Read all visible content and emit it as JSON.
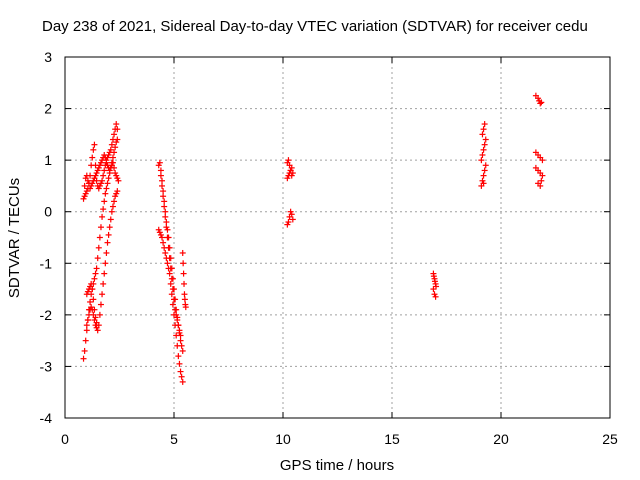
{
  "chart_data": {
    "type": "scatter",
    "title": "Day 238 of 2021, Sidereal Day-to-day VTEC variation (SDTVAR) for receiver cedu",
    "xlabel": "GPS time / hours",
    "ylabel": "SDTVAR / TECUs",
    "xlim": [
      0,
      25
    ],
    "ylim": [
      -4,
      3
    ],
    "x_ticks": [
      "0",
      "5",
      "10",
      "15",
      "20",
      "25"
    ],
    "y_ticks": [
      "-4",
      "-3",
      "-2",
      "-1",
      "0",
      "1",
      "2",
      "3"
    ],
    "grid": true,
    "marker": "+",
    "color": "#ff0000",
    "series": [
      {
        "x": [
          0.85,
          0.9,
          0.95,
          1.0,
          1.05,
          1.1,
          1.15,
          1.2,
          1.25,
          1.3,
          1.35,
          1.4,
          1.45,
          1.5,
          1.55,
          1.6,
          1.65,
          1.7,
          1.75,
          1.8,
          1.85,
          1.9,
          1.95,
          2.0,
          2.05,
          2.1,
          2.15,
          2.2,
          2.25,
          2.3,
          2.35,
          2.4,
          2.45,
          0.9,
          0.95,
          1.0,
          1.05,
          1.1,
          1.15,
          1.2,
          1.25,
          1.3,
          1.35,
          1.4,
          1.45,
          1.5,
          1.55,
          1.6,
          1.65,
          1.7,
          1.75,
          1.8,
          1.85,
          1.9,
          1.95,
          2.0,
          2.05,
          2.1,
          2.15,
          2.2,
          2.25,
          2.3,
          2.35,
          2.4,
          0.85,
          0.9,
          0.95,
          1.0,
          1.05,
          1.1,
          1.15,
          1.2,
          1.25,
          1.3,
          1.35,
          1.4,
          1.45,
          1.5,
          1.55,
          1.6,
          1.65,
          1.7,
          1.75,
          1.8,
          1.85,
          1.9,
          1.95,
          2.0,
          2.05,
          2.1,
          2.15,
          2.2,
          2.25,
          2.3,
          2.35,
          2.4,
          1.0,
          1.05,
          1.1,
          1.15,
          1.2,
          1.25,
          1.3,
          1.35,
          1.4,
          1.45,
          1.5,
          1.55,
          1.6,
          1.65,
          1.7,
          1.75,
          1.8,
          1.85,
          1.9,
          1.95,
          2.0,
          2.05,
          2.1,
          2.15,
          2.2,
          2.25,
          2.3,
          2.35,
          2.4,
          1.0,
          1.05,
          1.1,
          1.15,
          1.2,
          1.25,
          1.3,
          1.35,
          1.4,
          1.45,
          4.3,
          4.35,
          4.4,
          4.45,
          4.5,
          4.55,
          4.6,
          4.65,
          4.7,
          4.75,
          4.8,
          4.85,
          4.9,
          4.95,
          5.0,
          5.05,
          5.1,
          5.15,
          5.2,
          5.25,
          5.3,
          5.35,
          5.4,
          4.3,
          4.35,
          4.4,
          4.45,
          4.5,
          4.55,
          4.6,
          4.65,
          4.7,
          4.75,
          4.8,
          4.85,
          4.9,
          4.95,
          5.0,
          5.05,
          5.1,
          5.15,
          5.2,
          5.25,
          5.3,
          5.35,
          5.4,
          4.4,
          4.45,
          4.5,
          4.55,
          4.6,
          4.65,
          4.7,
          4.75,
          4.8,
          4.85,
          4.9,
          4.95,
          5.0,
          5.05,
          5.1,
          5.15,
          5.2,
          5.25,
          5.3,
          5.4,
          5.42,
          5.44,
          5.46,
          5.48,
          5.5,
          5.52,
          5.54,
          10.2,
          10.25,
          10.3,
          10.35,
          10.4,
          10.45,
          10.2,
          10.25,
          10.3,
          10.35,
          10.4,
          10.2,
          10.25,
          10.3,
          10.35,
          10.4,
          10.45,
          16.9,
          16.92,
          16.95,
          16.97,
          17.0,
          17.02,
          16.9,
          16.95,
          17.0,
          19.1,
          19.15,
          19.2,
          19.25,
          19.3,
          19.1,
          19.15,
          19.2,
          19.25,
          19.3,
          19.15,
          19.2,
          19.25,
          19.2,
          21.6,
          21.7,
          21.75,
          21.8,
          21.85,
          21.6,
          21.7,
          21.8,
          21.9,
          21.6,
          21.7,
          21.8,
          21.9,
          21.7,
          21.8,
          21.85
        ],
        "y": [
          0.25,
          0.5,
          0.65,
          0.7,
          0.6,
          0.55,
          0.45,
          0.5,
          0.55,
          0.6,
          0.65,
          0.7,
          0.75,
          0.8,
          0.85,
          0.9,
          0.95,
          1.0,
          1.05,
          1.1,
          1.05,
          0.95,
          0.9,
          0.85,
          0.8,
          0.85,
          0.9,
          0.95,
          0.85,
          0.75,
          0.7,
          0.65,
          0.6,
          0.3,
          0.35,
          0.4,
          0.45,
          0.55,
          0.7,
          0.9,
          1.05,
          1.2,
          1.3,
          0.9,
          0.6,
          0.5,
          0.45,
          0.5,
          0.55,
          0.6,
          0.7,
          0.8,
          0.9,
          1.0,
          1.05,
          1.1,
          1.15,
          1.2,
          1.3,
          1.4,
          1.5,
          1.6,
          1.7,
          1.6,
          -2.85,
          -2.7,
          -2.5,
          -2.3,
          -2.1,
          -1.9,
          -1.75,
          -1.6,
          -1.5,
          -1.4,
          -1.3,
          -1.2,
          -1.1,
          -0.9,
          -0.7,
          -0.5,
          -0.3,
          -0.1,
          0.05,
          0.2,
          0.35,
          0.45,
          0.55,
          0.65,
          0.75,
          0.85,
          0.95,
          1.05,
          1.15,
          1.25,
          1.35,
          1.4,
          -2.2,
          -2.1,
          -2.0,
          -1.9,
          -1.85,
          -1.9,
          -2.0,
          -2.1,
          -2.2,
          -2.25,
          -2.3,
          -2.2,
          -2.0,
          -1.8,
          -1.6,
          -1.4,
          -1.2,
          -1.0,
          -0.8,
          -0.6,
          -0.45,
          -0.3,
          -0.15,
          0.0,
          0.1,
          0.2,
          0.3,
          0.35,
          0.4,
          -1.6,
          -1.55,
          -1.5,
          -1.45,
          -1.4,
          -1.5,
          -1.7,
          -1.9,
          -2.05,
          -2.15,
          0.9,
          0.95,
          0.8,
          0.6,
          0.4,
          0.2,
          0.0,
          -0.2,
          -0.35,
          -0.5,
          -0.7,
          -0.9,
          -1.1,
          -1.3,
          -1.5,
          -1.7,
          -1.9,
          -2.05,
          -2.2,
          -2.35,
          -2.5,
          -2.6,
          -2.7,
          -0.35,
          -0.4,
          -0.45,
          -0.5,
          -0.6,
          -0.7,
          -0.8,
          -0.9,
          -1.0,
          -1.1,
          -1.2,
          -1.4,
          -1.6,
          -1.8,
          -2.0,
          -2.2,
          -2.4,
          -2.6,
          -2.8,
          -2.95,
          -3.1,
          -3.2,
          -3.3,
          0.7,
          0.5,
          0.3,
          0.1,
          -0.1,
          -0.3,
          -0.5,
          -0.7,
          -0.9,
          -1.1,
          -1.3,
          -1.5,
          -1.7,
          -1.9,
          -2.0,
          -2.1,
          -2.2,
          -2.3,
          -2.4,
          -0.8,
          -1.0,
          -1.2,
          -1.4,
          -1.6,
          -1.7,
          -1.8,
          -1.85,
          0.95,
          1.0,
          0.9,
          0.8,
          0.7,
          0.75,
          0.65,
          0.7,
          0.75,
          0.8,
          0.85,
          -0.25,
          -0.2,
          -0.1,
          0.0,
          -0.05,
          -0.15,
          -1.2,
          -1.25,
          -1.3,
          -1.35,
          -1.4,
          -1.45,
          -1.5,
          -1.6,
          -1.65,
          0.5,
          0.6,
          0.7,
          0.8,
          0.9,
          1.0,
          1.1,
          1.2,
          1.3,
          1.4,
          1.5,
          1.6,
          1.7,
          0.55,
          2.25,
          2.2,
          2.15,
          2.1,
          2.12,
          1.15,
          1.1,
          1.05,
          1.0,
          0.85,
          0.8,
          0.75,
          0.7,
          0.55,
          0.5,
          0.6
        ]
      }
    ]
  }
}
